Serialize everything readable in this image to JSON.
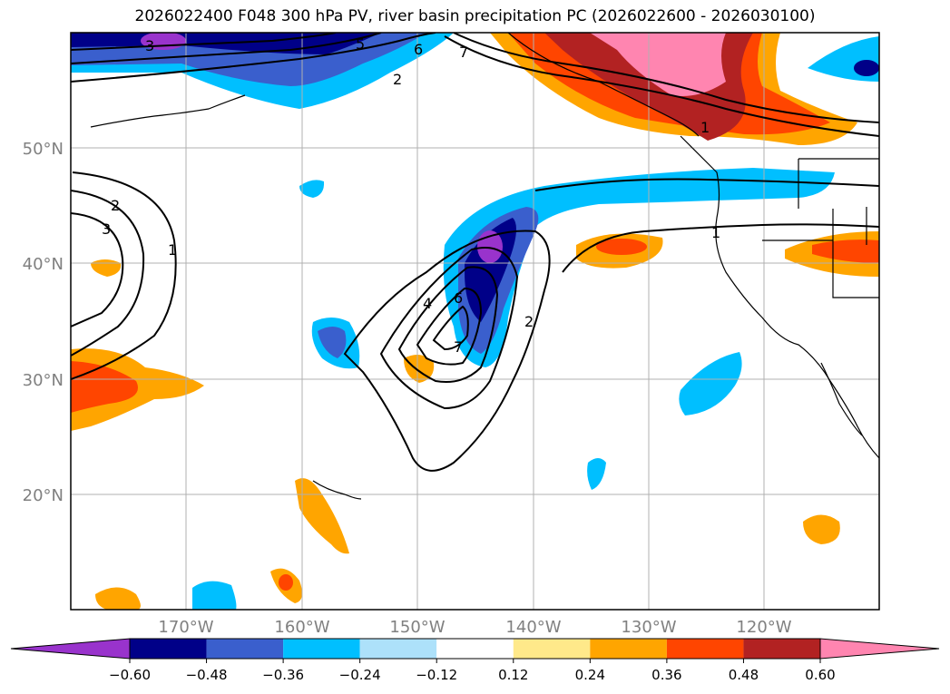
{
  "title": "2026022400 F048 300 hPa PV, river basin precipitation PC (2026022600 - 2026030100)",
  "map": {
    "lat_labels": [
      "50°N",
      "40°N",
      "30°N",
      "20°N"
    ],
    "lon_labels": [
      "170°W",
      "160°W",
      "150°W",
      "140°W",
      "130°W",
      "120°W"
    ],
    "label_color": "#808080",
    "grid": true,
    "land_color": "#ffffff",
    "coastline_color": "#000000"
  },
  "contours": {
    "field": "300 hPa PV",
    "color": "#000000",
    "labels": [
      "1",
      "2",
      "3",
      "4",
      "5",
      "6",
      "7"
    ]
  },
  "colorbar": {
    "orientation": "horizontal",
    "ticks": [
      "−0.60",
      "−0.48",
      "−0.36",
      "−0.24",
      "−0.12",
      "0.12",
      "0.24",
      "0.36",
      "0.48",
      "0.60"
    ],
    "colors": [
      "#9933cc",
      "#000088",
      "#3a5fcd",
      "#00bfff",
      "#ade1fa",
      "#ffffff",
      "#ffe98a",
      "#ffa500",
      "#ff4500",
      "#b22222",
      "#ff85b0"
    ],
    "extend": "both"
  }
}
